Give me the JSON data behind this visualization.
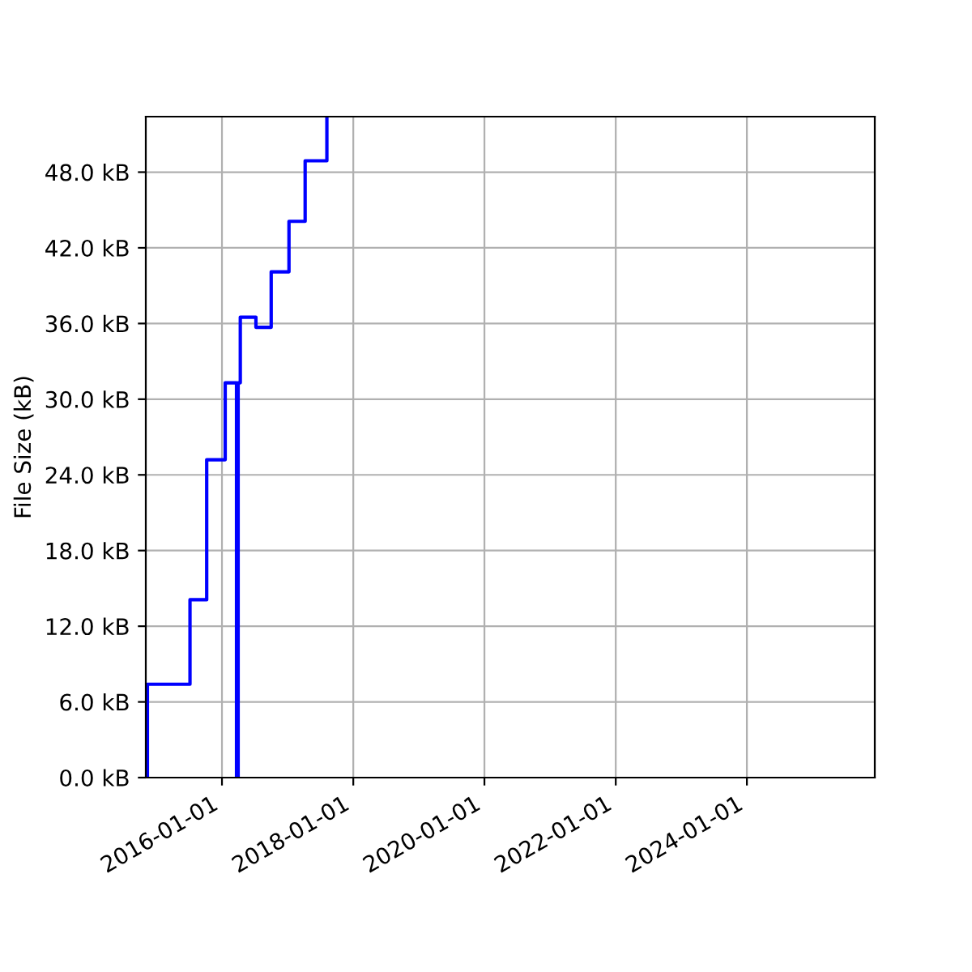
{
  "chart_data": {
    "type": "step",
    "ylabel": "File Size (kB)",
    "x": [
      "2014-11-12",
      "2014-11-12",
      "2015-07-07",
      "2015-10-08",
      "2016-01-19",
      "2016-03-22",
      "2016-03-31",
      "2016-04-12",
      "2016-07-08",
      "2016-10-01",
      "2017-01-08",
      "2017-04-08",
      "2017-08-07",
      "2017-08-07"
    ],
    "series": [
      {
        "color": "#0000ff",
        "values": [
          0,
          7.4,
          14.1,
          25.2,
          31.3,
          0,
          31.3,
          36.5,
          35.7,
          40.1,
          44.1,
          48.9,
          48.9,
          52.4
        ]
      }
    ],
    "xlim": [
      "2014-11-03",
      "2025-12-13"
    ],
    "xticks": [
      "2016-01-01",
      "2018-01-01",
      "2020-01-01",
      "2022-01-01",
      "2024-01-01"
    ],
    "ylim": [
      0,
      52.4
    ],
    "yticks": [
      {
        "value": 0,
        "label": "0.0 kB"
      },
      {
        "value": 6,
        "label": "6.0 kB"
      },
      {
        "value": 12,
        "label": "12.0 kB"
      },
      {
        "value": 18,
        "label": "18.0 kB"
      },
      {
        "value": 24,
        "label": "24.0 kB"
      },
      {
        "value": 30,
        "label": "30.0 kB"
      },
      {
        "value": 36,
        "label": "36.0 kB"
      },
      {
        "value": 42,
        "label": "42.0 kB"
      },
      {
        "value": 48,
        "label": "48.0 kB"
      }
    ],
    "grid": true,
    "line_style": "solid"
  }
}
